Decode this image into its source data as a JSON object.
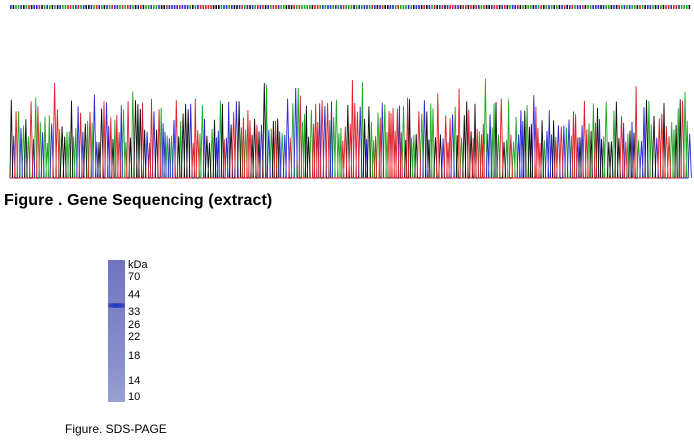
{
  "sequencing": {
    "caption": "Figure . Gene Sequencing (extract)",
    "trace_colors": {
      "A": "#1fa824",
      "C": "#2a2ad8",
      "G": "#111111",
      "T": "#e0202a"
    }
  },
  "sds_page": {
    "caption": "Figure. SDS-PAGE",
    "unit_label": "kDa",
    "markers": [
      "70",
      "44",
      "33",
      "26",
      "22",
      "18",
      "14",
      "10"
    ],
    "band_marker": "44",
    "lane_color": "#7d84c6",
    "band_color": "#1a2fb5"
  }
}
